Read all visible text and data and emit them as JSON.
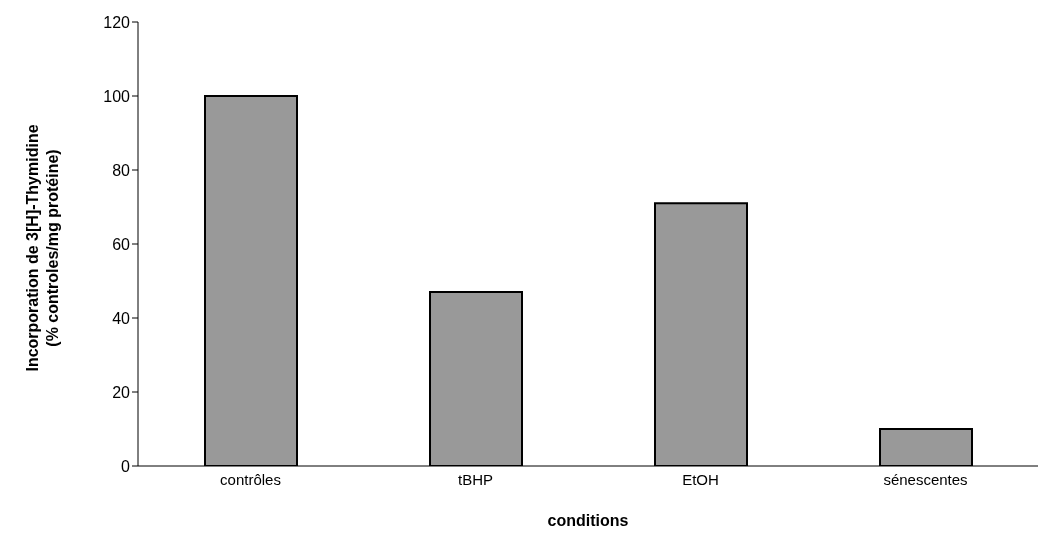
{
  "chart_data": {
    "type": "bar",
    "xlabel": "conditions",
    "ylabel": "Incorporation de 3[H]-Thymidine\n(% controles/mg protéine)",
    "categories": [
      "contrôles",
      "tBHP",
      "EtOH",
      "sénescentes"
    ],
    "values": [
      100,
      47,
      71,
      10
    ],
    "color": "#999999",
    "ylim": [
      0,
      120
    ],
    "yticks": [
      0,
      20,
      40,
      60,
      80,
      100,
      120
    ],
    "grid": false,
    "legend": false
  }
}
